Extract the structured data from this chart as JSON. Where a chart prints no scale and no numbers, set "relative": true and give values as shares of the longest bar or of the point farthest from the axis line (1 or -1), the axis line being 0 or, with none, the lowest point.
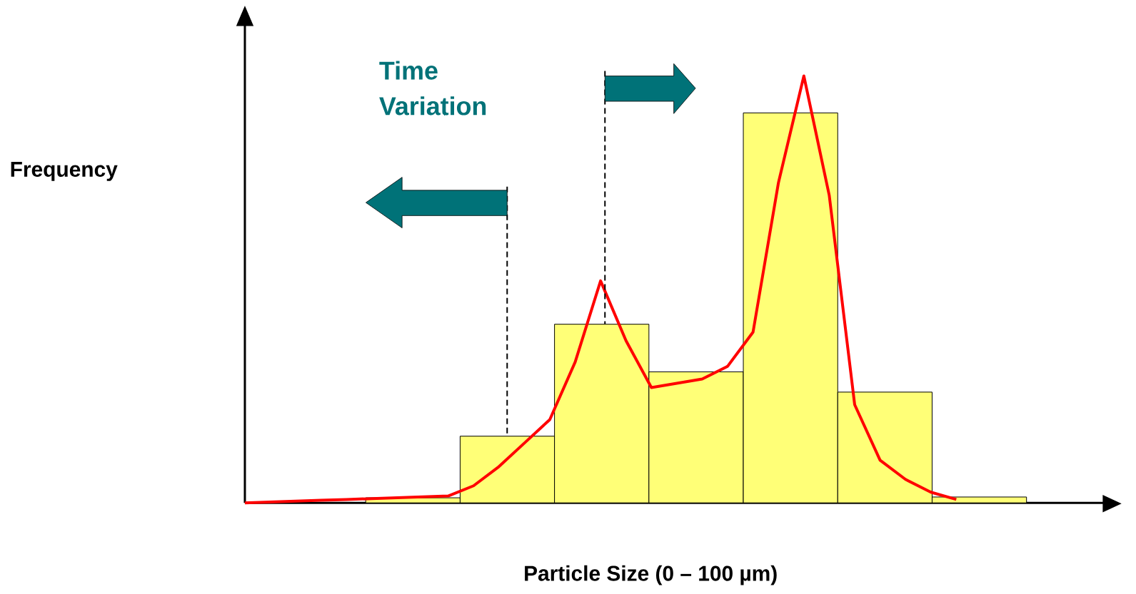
{
  "chart_data": [
    {
      "type": "bar",
      "xlabel": "Particle Size (0 – 100 µm)",
      "ylabel": "Frequency",
      "annotations": [
        "Time Variation"
      ],
      "relative": true,
      "categories": [
        null,
        null,
        null,
        null,
        null,
        null,
        null
      ],
      "series": [
        {
          "color": "#ffff77",
          "values": [
            0.013,
            0.171,
            0.458,
            0.336,
            1,
            0.284,
            0.015
          ]
        }
      ]
    },
    {
      "type": "line",
      "relative": true,
      "categories": [
        null,
        null,
        null,
        null,
        null,
        null,
        null,
        null,
        null,
        null,
        null,
        null,
        null,
        null,
        null,
        null,
        null,
        null,
        null,
        null,
        null,
        null,
        null,
        null,
        null,
        null,
        null,
        null,
        null
      ],
      "series": [
        {
          "color": "#ff0000",
          "values": [
            0,
            0.002,
            0.004,
            0.006,
            0.008,
            0.01,
            0.012,
            0.014,
            0.016,
            0.04,
            0.085,
            0.14,
            0.195,
            0.33,
            0.52,
            0.38,
            0.27,
            0.28,
            0.29,
            0.32,
            0.4,
            0.75,
            1.0,
            0.72,
            0.23,
            0.1,
            0.055,
            0.025,
            0.008
          ]
        }
      ]
    }
  ]
}
